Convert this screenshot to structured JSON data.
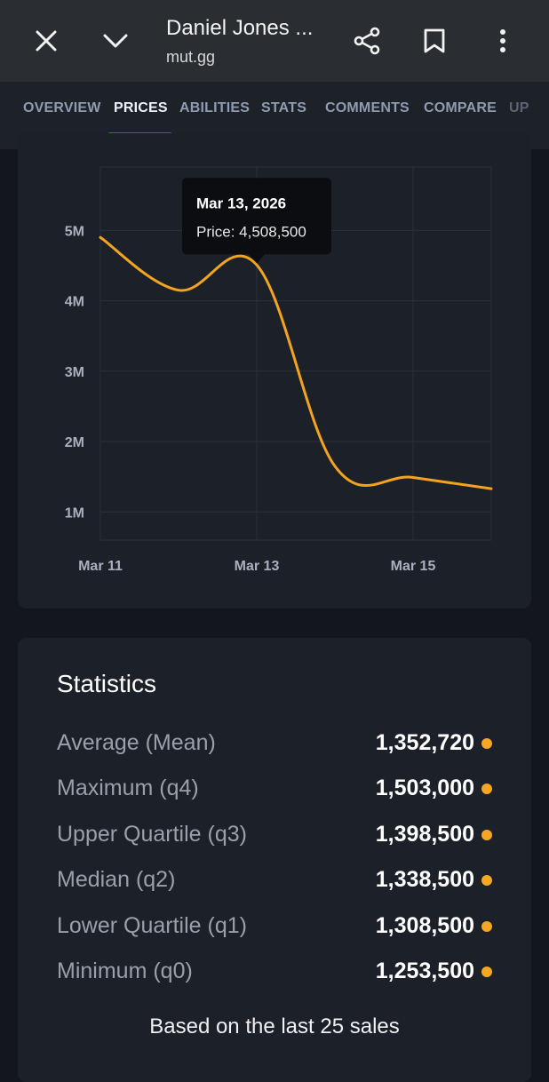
{
  "header": {
    "title": "Daniel Jones ...",
    "subtitle": "mut.gg"
  },
  "tabs": [
    {
      "label": "OVERVIEW"
    },
    {
      "label": "PRICES",
      "active": true
    },
    {
      "label": "ABILITIES"
    },
    {
      "label": "STATS"
    },
    {
      "label": "COMMENTS"
    },
    {
      "label": "COMPARE"
    },
    {
      "label": "UP"
    }
  ],
  "chart_data": {
    "type": "line",
    "x_ticks": [
      "Mar 11",
      "Mar 13",
      "Mar 15"
    ],
    "y_ticks": [
      "5M",
      "4M",
      "3M",
      "2M",
      "1M"
    ],
    "y_tick_values": [
      5000000,
      4000000,
      3000000,
      2000000,
      1000000
    ],
    "ylim": [
      600000,
      5900000
    ],
    "xlim": [
      11,
      16
    ],
    "series": [
      {
        "name": "Price",
        "color": "#f2a41e",
        "x": [
          11,
          12,
          13,
          14,
          15,
          16
        ],
        "y": [
          4900000,
          4150000,
          4508500,
          1650000,
          1490000,
          1330000
        ]
      }
    ],
    "tooltip": {
      "date": "Mar 13, 2026",
      "text": "Price: 4,508,500"
    }
  },
  "statistics": {
    "title": "Statistics",
    "rows": [
      {
        "label": "Average (Mean)",
        "value": "1,352,720"
      },
      {
        "label": "Maximum (q4)",
        "value": "1,503,000"
      },
      {
        "label": "Upper Quartile (q3)",
        "value": "1,398,500"
      },
      {
        "label": "Median (q2)",
        "value": "1,338,500"
      },
      {
        "label": "Lower Quartile (q1)",
        "value": "1,308,500"
      },
      {
        "label": "Minimum (q0)",
        "value": "1,253,500"
      }
    ],
    "footnote": "Based on the last 25 sales",
    "dot_color": "#f5a623"
  }
}
